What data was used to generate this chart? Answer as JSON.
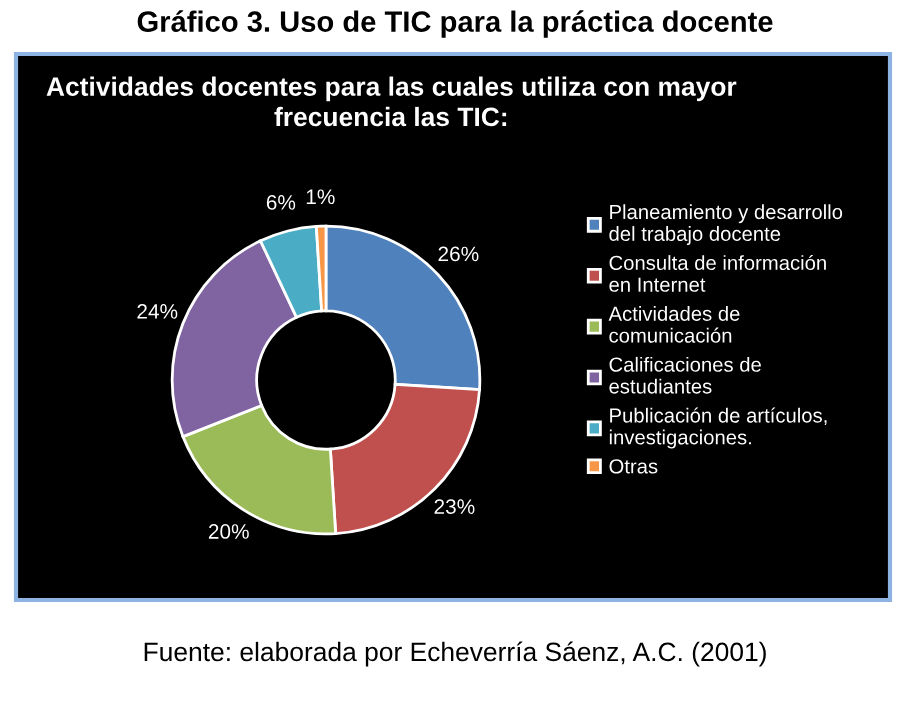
{
  "chart_data": {
    "type": "donut",
    "title": "Gráfico 3. Uso de TIC para la práctica docente",
    "subtitle": "Actividades docentes para las cuales utiliza con mayor\nfrecuencia las TIC:",
    "categories": [
      "Planeamiento y desarrollo\ndel trabajo docente",
      "Consulta de información\nen Internet",
      "Actividades de\ncomunicación",
      "Calificaciones de\nestudiantes",
      "Publicación de artículos,\ninvestigaciones.",
      "Otras"
    ],
    "values": [
      26,
      23,
      20,
      24,
      6,
      1
    ],
    "colors": [
      "#4f81bd",
      "#c0504d",
      "#9bbb59",
      "#8064a2",
      "#4bacc6",
      "#f79646"
    ],
    "value_labels": [
      "26%",
      "23%",
      "20%",
      "24%",
      "6%",
      "1%"
    ],
    "legend": "right",
    "annotations": [
      "Fuente: elaborada por Echeverría Sáenz, A.C. (2001)"
    ]
  }
}
